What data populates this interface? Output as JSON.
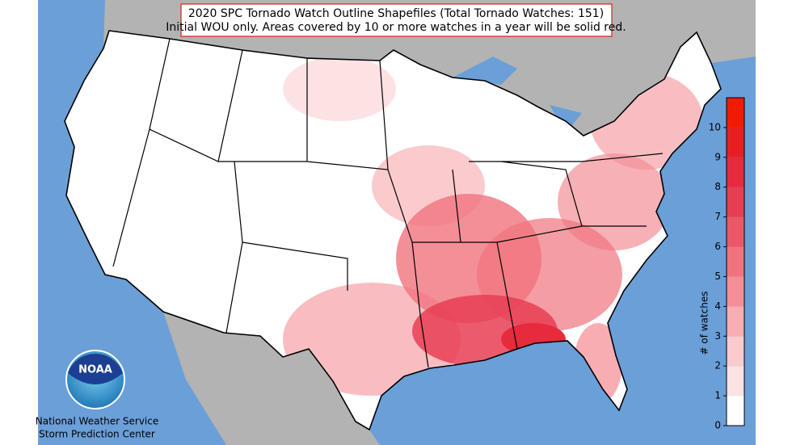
{
  "title_box": {
    "lines": [
      "2020 SPC Tornado Watch Outline Shapefiles (Total Tornado Watches: 151)",
      "Initial WOU only. Areas covered by 10 or more watches in a year will be solid red."
    ]
  },
  "colorbar": {
    "label": "# of watches",
    "lim": [
      0,
      11
    ],
    "ticks": [
      0,
      1,
      2,
      3,
      4,
      5,
      6,
      7,
      8,
      9,
      10
    ],
    "colors": [
      "#ffffff",
      "#fde2e3",
      "#fbcacd",
      "#f8adb2",
      "#f48f96",
      "#f0737d",
      "#ec5868",
      "#e83e54",
      "#e62b3d",
      "#e81f22",
      "#f21a00"
    ]
  },
  "logo": {
    "text": "NOAA"
  },
  "credit": {
    "lines": [
      "National Weather Service",
      "Storm Prediction Center"
    ]
  }
}
